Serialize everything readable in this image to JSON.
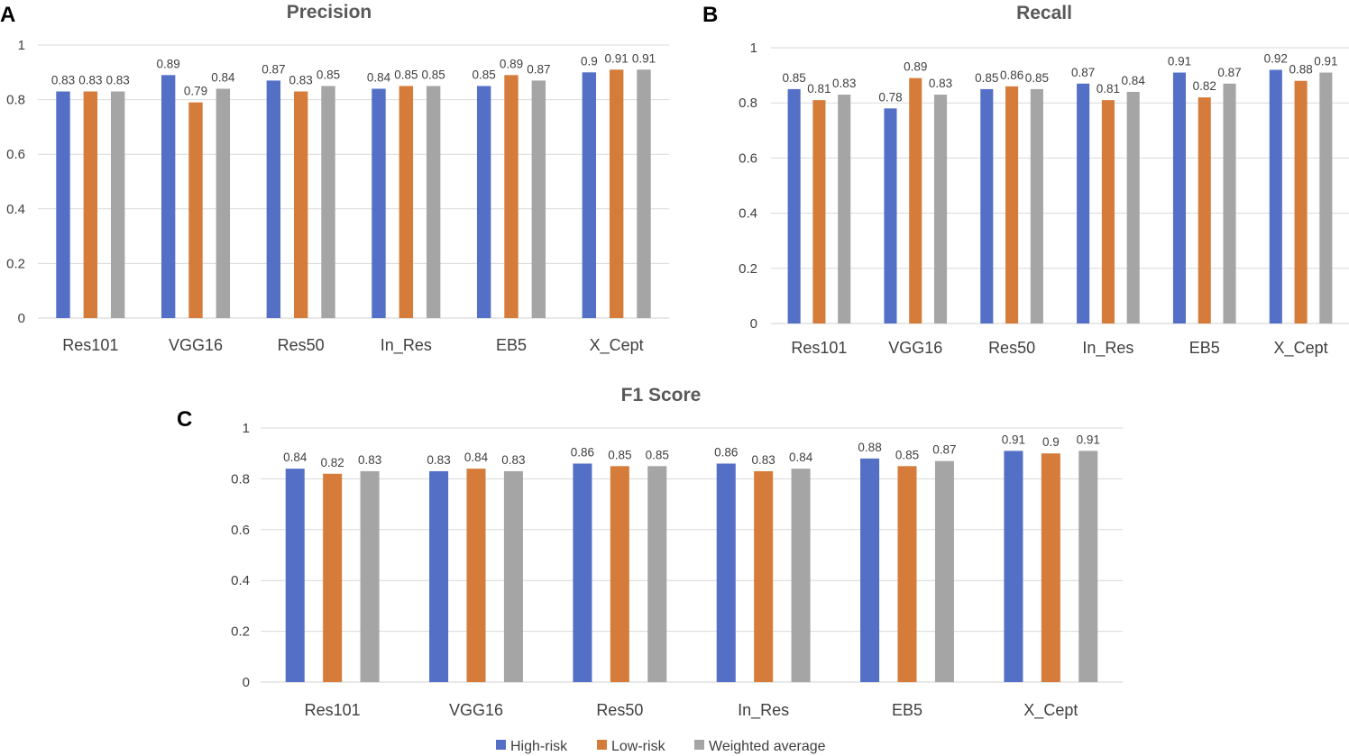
{
  "panels": [
    {
      "letter": "A"
    },
    {
      "letter": "B"
    },
    {
      "letter": "C"
    }
  ],
  "legend": {
    "items": [
      {
        "label": "High-risk",
        "color": "#5470c6"
      },
      {
        "label": "Low-risk",
        "color": "#d67c3b"
      },
      {
        "label": "Weighted average",
        "color": "#a5a5a5"
      }
    ]
  },
  "chart_data": [
    {
      "type": "bar",
      "title": "Precision",
      "categories": [
        "Res101",
        "VGG16",
        "Res50",
        "In_Res",
        "EB5",
        "X_Cept"
      ],
      "series": [
        {
          "name": "High-risk",
          "color": "#5470c6",
          "values": [
            0.83,
            0.89,
            0.87,
            0.84,
            0.85,
            0.9
          ]
        },
        {
          "name": "Low-risk",
          "color": "#d67c3b",
          "values": [
            0.83,
            0.79,
            0.83,
            0.85,
            0.89,
            0.91
          ]
        },
        {
          "name": "Weighted average",
          "color": "#a5a5a5",
          "values": [
            0.83,
            0.84,
            0.85,
            0.85,
            0.87,
            0.91
          ]
        }
      ],
      "ylim": [
        0,
        1
      ],
      "yticks": [
        "0",
        "0.2",
        "0.4",
        "0.6",
        "0.8",
        "1"
      ],
      "grid": true
    },
    {
      "type": "bar",
      "title": "Recall",
      "categories": [
        "Res101",
        "VGG16",
        "Res50",
        "In_Res",
        "EB5",
        "X_Cept"
      ],
      "series": [
        {
          "name": "High-risk",
          "color": "#5470c6",
          "values": [
            0.85,
            0.78,
            0.85,
            0.87,
            0.91,
            0.92
          ]
        },
        {
          "name": "Low-risk",
          "color": "#d67c3b",
          "values": [
            0.81,
            0.89,
            0.86,
            0.81,
            0.82,
            0.88
          ]
        },
        {
          "name": "Weighted average",
          "color": "#a5a5a5",
          "values": [
            0.83,
            0.83,
            0.85,
            0.84,
            0.87,
            0.91
          ]
        }
      ],
      "ylim": [
        0,
        1
      ],
      "yticks": [
        "0",
        "0.2",
        "0.4",
        "0.6",
        "0.8",
        "1"
      ],
      "grid": true
    },
    {
      "type": "bar",
      "title": "F1 Score",
      "categories": [
        "Res101",
        "VGG16",
        "Res50",
        "In_Res",
        "EB5",
        "X_Cept"
      ],
      "series": [
        {
          "name": "High-risk",
          "color": "#5470c6",
          "values": [
            0.84,
            0.83,
            0.86,
            0.86,
            0.88,
            0.91
          ]
        },
        {
          "name": "Low-risk",
          "color": "#d67c3b",
          "values": [
            0.82,
            0.84,
            0.85,
            0.83,
            0.85,
            0.9
          ]
        },
        {
          "name": "Weighted average",
          "color": "#a5a5a5",
          "values": [
            0.83,
            0.83,
            0.85,
            0.84,
            0.87,
            0.91
          ]
        }
      ],
      "ylim": [
        0,
        1
      ],
      "yticks": [
        "0",
        "0.2",
        "0.4",
        "0.6",
        "0.8",
        "1"
      ],
      "grid": true
    }
  ]
}
